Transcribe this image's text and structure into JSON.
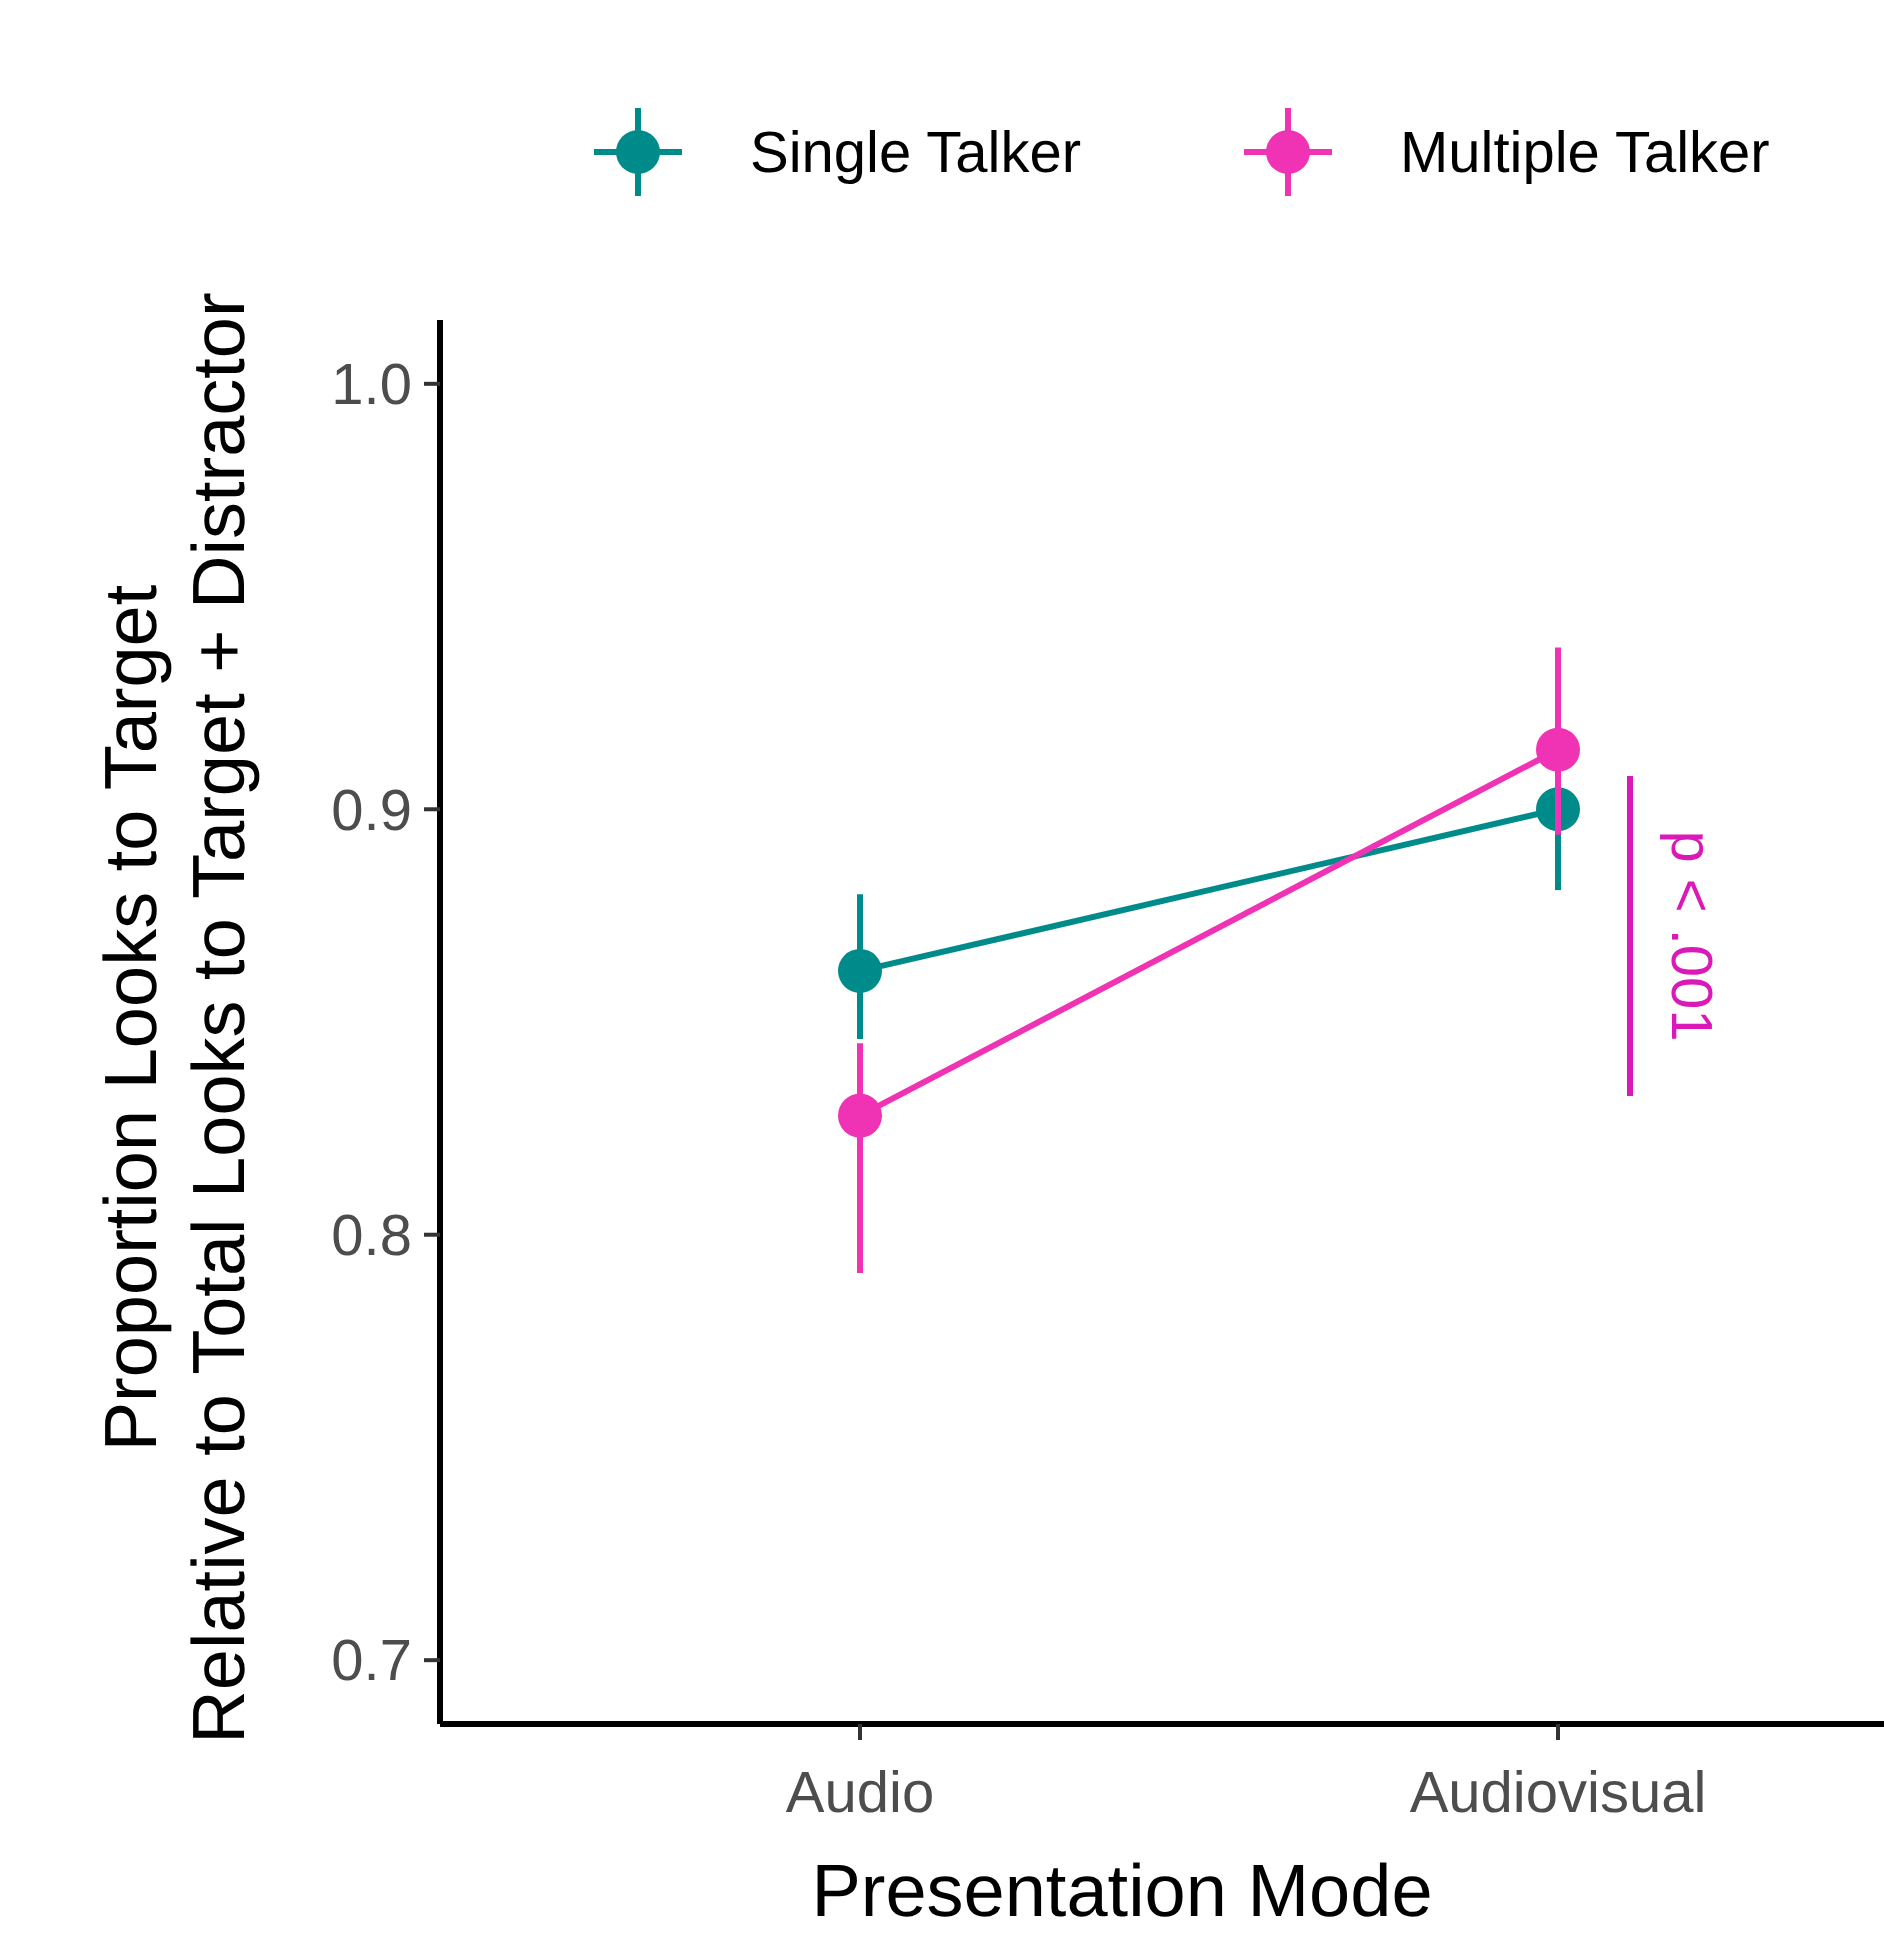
{
  "chart_data": {
    "type": "line",
    "xlabel": "Presentation Mode",
    "ylabel": "Proportion Looks to Target\nRelative to Total Looks to Target + Distractor",
    "categories": [
      "Audio",
      "Audiovisual"
    ],
    "series": [
      {
        "name": "Single Talker",
        "color": "#008b8b",
        "values": [
          0.862,
          0.9
        ],
        "errors": [
          [
            0.846,
            0.88
          ],
          [
            0.881,
            0.9
          ]
        ]
      },
      {
        "name": "Multiple Talker",
        "color": "#f032b4",
        "values": [
          0.828,
          0.914
        ],
        "errors": [
          [
            0.791,
            0.845
          ],
          [
            0.894,
            0.938
          ]
        ]
      }
    ],
    "ylim": [
      0.685,
      1.015
    ],
    "yticks": [
      0.7,
      0.8,
      0.9,
      {
        "value": 1,
        "label": "1.0"
      }
    ],
    "grid": false,
    "legend": "top",
    "marker": "circle",
    "line_style": "solid",
    "annotations": [
      "p < .001"
    ]
  }
}
